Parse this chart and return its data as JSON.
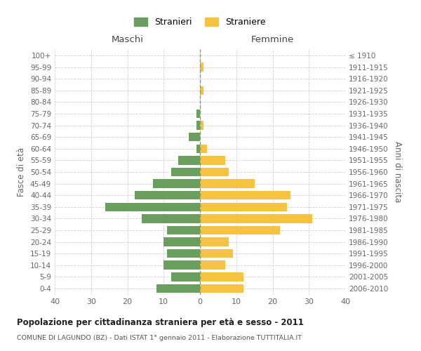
{
  "age_groups": [
    "0-4",
    "5-9",
    "10-14",
    "15-19",
    "20-24",
    "25-29",
    "30-34",
    "35-39",
    "40-44",
    "45-49",
    "50-54",
    "55-59",
    "60-64",
    "65-69",
    "70-74",
    "75-79",
    "80-84",
    "85-89",
    "90-94",
    "95-99",
    "100+"
  ],
  "birth_years": [
    "2006-2010",
    "2001-2005",
    "1996-2000",
    "1991-1995",
    "1986-1990",
    "1981-1985",
    "1976-1980",
    "1971-1975",
    "1966-1970",
    "1961-1965",
    "1956-1960",
    "1951-1955",
    "1946-1950",
    "1941-1945",
    "1936-1940",
    "1931-1935",
    "1926-1930",
    "1921-1925",
    "1916-1920",
    "1911-1915",
    "≤ 1910"
  ],
  "maschi": [
    12,
    8,
    10,
    9,
    10,
    9,
    16,
    26,
    18,
    13,
    8,
    6,
    1,
    3,
    1,
    1,
    0,
    0,
    0,
    0,
    0
  ],
  "femmine": [
    12,
    12,
    7,
    9,
    8,
    22,
    31,
    24,
    25,
    15,
    8,
    7,
    2,
    0,
    1,
    0,
    0,
    1,
    0,
    1,
    0
  ],
  "male_color": "#6a9e5e",
  "female_color": "#f5c242",
  "title": "Popolazione per cittadinanza straniera per età e sesso - 2011",
  "subtitle": "COMUNE DI LAGUNDO (BZ) - Dati ISTAT 1° gennaio 2011 - Elaborazione TUTTITALIA.IT",
  "left_label": "Maschi",
  "right_label": "Femmine",
  "ylabel_left": "Fasce di età",
  "ylabel_right": "Anni di nascita",
  "legend_male": "Stranieri",
  "legend_female": "Straniere",
  "xlim": 40,
  "background_color": "#ffffff",
  "grid_color": "#cccccc",
  "bar_height": 0.75
}
